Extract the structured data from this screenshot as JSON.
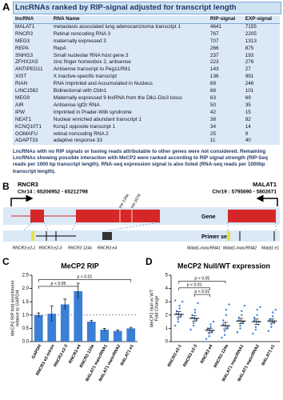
{
  "panel_labels": [
    "A",
    "B",
    "C",
    "D"
  ],
  "table_panel": {
    "title": "LncRNAs ranked by RIP-signal adjusted for transcript length",
    "columns": [
      "lncRNA",
      "RNA Name",
      "RIP-signal",
      "EXP-signal"
    ],
    "rows": [
      [
        "MALAT1",
        "metastasis associated lung adenocarcinoma transcript 1",
        4641,
        7155
      ],
      [
        "RNCR3",
        "Retinal noncoding RNA 3",
        767,
        2205
      ],
      [
        "MEG3",
        "maternally expressed 3",
        707,
        1313
      ],
      [
        "REPA",
        "RepA",
        266,
        875
      ],
      [
        "SNHG3",
        "Small nucleolar RNA host gene 3",
        237,
        193
      ],
      [
        "ZFHX2AS",
        "zinc finger homeobox 2, antisense",
        223,
        276
      ],
      [
        "ANTIPEG11",
        "Antisense transcript to Peg11/Rtl1",
        143,
        27
      ],
      [
        "XIST",
        "X inactive-specific transcript",
        136,
        991
      ],
      [
        "RIAN",
        "RNA Imprinted and Accumulated in Nucleus",
        69,
        246
      ],
      [
        "LINC1582",
        "Bidirectional with Cbln1",
        68,
        101
      ],
      [
        "MEG9",
        "Maternally expressed 9 lncRNA from the Dlk1-Dio3 locus",
        63,
        69
      ],
      [
        "AIR",
        "Antisense Igf2r RNA",
        50,
        35
      ],
      [
        "IPW",
        "Imprinted in Prader-Willi syndrome",
        42,
        15
      ],
      [
        "NEAT1",
        "Nuclear enriched abundant transcript 1",
        38,
        92
      ],
      [
        "KCNQ10T1",
        "Kcnq1 opposite transcript 1",
        34,
        14
      ],
      [
        "GOMAFU",
        "retinal noncoding RNA 2",
        25,
        9
      ],
      [
        "ADAPT33",
        "adaptive response 33",
        11,
        40
      ]
    ],
    "note": "LncRNAs with no RIP signals or having reads attributable to other genes were not considered. Remaining LncRNAs showing possible interaction with MeCP2 were ranked according to RIP signal strength (RIP-Seq reads per 1000 bp transcript length). RNA-seq expression signal is also listed (RNA-seq reads per 1000bp transcript length)."
  },
  "diagram": {
    "left_gene": "RNCR3",
    "left_locus": "Chr14 : 65206952 - 65212798",
    "right_gene": "MALAT1",
    "right_locus": "Chr19 : 5795690 - 5802671",
    "mirnas": [
      "mir-124a",
      "mir-3078"
    ],
    "track_labels": [
      "Gene",
      "Primer set"
    ],
    "left_primers": [
      "RNCR3 e2-1",
      "RNCR3 e2-3",
      "RNCR3 124a",
      "RNCR3 e4"
    ],
    "right_primers": [
      "Malat1-mascRNA1",
      "Malat1-mascRNA2",
      "Malat1 e1"
    ]
  },
  "chart_data": [
    {
      "type": "bar",
      "title": "MeCP2 RIP",
      "y_label": [
        "MeCP2 RIP fold enrichment",
        "relative to GAPDH"
      ],
      "categories": [
        "GAPDH",
        "RNCR3 e2-intron",
        "RNCR3 e2-3",
        "RNCR3 e4",
        "RNCR3 124a",
        "MALAT1 mascRNA1",
        "MALAT1 mascRNA2",
        "MALAT1 e1"
      ],
      "values": [
        1.0,
        1.05,
        1.4,
        1.9,
        0.75,
        0.45,
        0.4,
        0.5
      ],
      "errors": [
        0.08,
        0.3,
        0.2,
        0.3,
        0.05,
        0.05,
        0.04,
        0.04
      ],
      "color": "#3a7fd5",
      "reference_line": 1,
      "ylim": [
        0,
        2.5
      ],
      "yticks": [
        {
          "value": 0,
          "label": "0.0"
        },
        0.5,
        {
          "value": 1,
          "label": "1.0"
        },
        1.5,
        {
          "value": 2,
          "label": "2.0"
        },
        2.5
      ],
      "annotations": [
        "p < 0.05",
        "p < 0.01"
      ]
    },
    {
      "type": "dot",
      "title": "MeCP2 Null/WT expression",
      "y_label": [
        "MeCP2 Null vs WT",
        "Fold Change"
      ],
      "categories": [
        "RNCR3 e2-1",
        "RNCR3 e2-3",
        "RNCR3 e4",
        "RNCR3 124a",
        "MALAT1 mascRNA1",
        "MALAT1 mascRNA2",
        "MALAT1 e1"
      ],
      "points": [
        [
          1.2,
          1.5,
          1.7,
          1.9,
          2.0,
          2.1,
          2.3,
          2.5,
          2.7,
          3.0,
          3.1
        ],
        [
          0.9,
          1.2,
          1.4,
          1.6,
          1.7,
          1.8,
          2.0,
          2.2,
          2.4,
          2.9
        ],
        [
          0.2,
          0.4,
          0.6,
          0.7,
          0.8,
          0.9,
          1.0,
          1.1,
          1.3,
          1.5
        ],
        [
          0.3,
          0.5,
          0.8,
          1.0,
          1.1,
          1.3,
          1.6,
          2.0,
          2.4,
          2.8
        ],
        [
          0.7,
          1.0,
          1.2,
          1.4,
          1.5,
          1.6,
          1.8,
          2.0,
          2.3,
          2.7
        ],
        [
          0.6,
          0.9,
          1.1,
          1.3,
          1.5,
          1.6,
          1.8,
          2.0,
          2.4,
          2.6
        ],
        [
          0.8,
          1.1,
          1.3,
          1.4,
          1.5,
          1.6,
          1.7,
          1.9,
          2.2,
          2.4
        ]
      ],
      "means": [
        2.05,
        1.75,
        0.85,
        1.2,
        1.55,
        1.5,
        1.55
      ],
      "errors": [
        0.2,
        0.2,
        0.15,
        0.25,
        0.2,
        0.2,
        0.15
      ],
      "color": "#3a7fd5",
      "ylim": [
        0,
        5
      ],
      "yticks": [
        0,
        1,
        2,
        3,
        4,
        5
      ],
      "annotations": [
        "p < 0.05",
        "p < 0.01",
        "p < 0.01"
      ]
    }
  ]
}
